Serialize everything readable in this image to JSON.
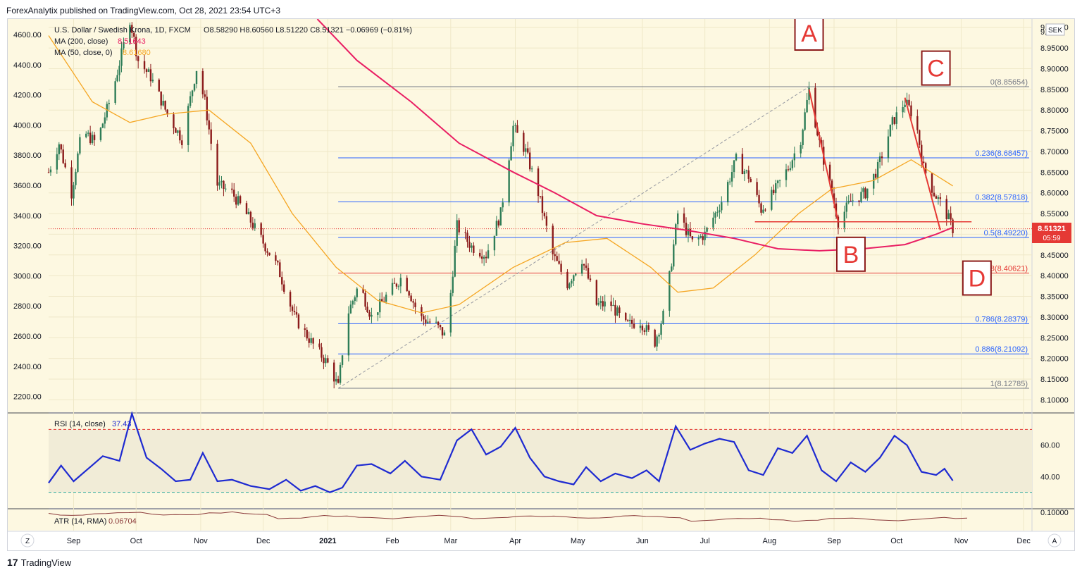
{
  "publisher_line": "ForexAnalytix published on TradingView.com, Oct 28, 2021 23:54 UTC+3",
  "footer_brand": "TradingView",
  "footer_logo_glyph": "17",
  "colors": {
    "bg_main": "#fdf8e1",
    "bg_panel": "#fdf8e1",
    "up": "#2e7d57",
    "down": "#8b1a1a",
    "ma200": "#e91e63",
    "ma50": "#f5a623",
    "fib": "#2962ff",
    "red_line": "#e53935",
    "rsi": "#1e2ad1",
    "atr": "#8b3a3a",
    "label_box": "#8b1a1a",
    "price_tag": "#e53935"
  },
  "legend": {
    "symbol": "U.S. Dollar / Swedish Krona, 1D, FXCM",
    "ohlc": "O8.58290  H8.60560  L8.51220  C8.51321  −0.06969 (−0.81%)",
    "ma200": "MA (200, close)",
    "ma200_val": "8.51643",
    "ma50": "MA (50, close, 0)",
    "ma50_val": "8.61680"
  },
  "currency_badge": "SEK",
  "price_tag": {
    "value": "8.51321",
    "countdown": "05:59"
  },
  "right_axis": [
    "9.00000",
    "8.95000",
    "8.90000",
    "8.85000",
    "8.80000",
    "8.75000",
    "8.70000",
    "8.65000",
    "8.60000",
    "8.55000",
    "8.50000",
    "8.45000",
    "8.40000",
    "8.35000",
    "8.30000",
    "8.25000",
    "8.20000",
    "8.15000",
    "8.10000"
  ],
  "right_axis_top_label": "9.",
  "left_axis": [
    "4600.00",
    "4400.00",
    "4200.00",
    "4000.00",
    "3800.00",
    "3600.00",
    "3400.00",
    "3200.00",
    "3000.00",
    "2800.00",
    "2600.00",
    "2400.00",
    "2200.00"
  ],
  "time_axis": [
    "Sep",
    "Oct",
    "Nov",
    "Dec",
    "2021",
    "Feb",
    "Mar",
    "Apr",
    "May",
    "Jun",
    "Jul",
    "Aug",
    "Sep",
    "Oct",
    "Nov",
    "Dec"
  ],
  "rsi": {
    "label": "RSI (14, close)",
    "value": "37.43",
    "axis": [
      "60.00",
      "40.00"
    ]
  },
  "atr": {
    "label": "ATR (14, RMA)",
    "value": "0.06704",
    "axis": [
      "0.10000"
    ]
  },
  "pattern_labels": [
    "A",
    "B",
    "C",
    "D"
  ],
  "bottom_buttons": {
    "left": "Z",
    "right": "A"
  },
  "chart_data": {
    "type": "candlestick",
    "title": "U.S. Dollar / Swedish Krona, 1D, FXCM",
    "y_range": [
      8.07,
      9.02
    ],
    "x_range": [
      "2020-08-20",
      "2021-12-05"
    ],
    "fib_levels": [
      {
        "label": "0(8.85654)",
        "value": 8.85654
      },
      {
        "label": "0.236(8.68457)",
        "value": 8.68457
      },
      {
        "label": "0.382(8.57818)",
        "value": 8.57818
      },
      {
        "label": "0.5(8.49220)",
        "value": 8.4922
      },
      {
        "label": "0.618(8.40621)",
        "value": 8.40621
      },
      {
        "label": "0.786(8.28379)",
        "value": 8.28379
      },
      {
        "label": "0.886(8.21092)",
        "value": 8.21092
      },
      {
        "label": "1(8.12785)",
        "value": 8.12785
      }
    ],
    "fib_red_level": "0.618(8.40621)",
    "trend_dash_from": [
      "2021-01-06",
      8.12785
    ],
    "trend_dash_to": [
      "2021-08-20",
      8.85654
    ],
    "red_horizontal": {
      "from": "2021-07-25",
      "to": "2021-11-06",
      "value": 8.53
    },
    "red_segments": [
      {
        "from": [
          "2021-08-20",
          8.85
        ],
        "to": [
          "2021-09-03",
          8.53
        ]
      },
      {
        "from": [
          "2021-10-05",
          8.83
        ],
        "to": [
          "2021-10-22",
          8.51
        ]
      }
    ],
    "pattern_points": [
      {
        "label": "A",
        "date": "2021-08-20",
        "value": 8.85654
      },
      {
        "label": "B",
        "date": "2021-09-03",
        "value": 8.53
      },
      {
        "label": "C",
        "date": "2021-10-05",
        "value": 8.83
      },
      {
        "label": "D",
        "date": "2021-10-22",
        "value": 8.51
      }
    ],
    "price_path": [
      [
        "2020-08-20",
        8.65
      ],
      [
        "2020-08-25",
        8.72
      ],
      [
        "2020-08-31",
        8.6
      ],
      [
        "2020-09-05",
        8.75
      ],
      [
        "2020-09-12",
        8.72
      ],
      [
        "2020-09-20",
        8.85
      ],
      [
        "2020-09-28",
        9.02
      ],
      [
        "2020-10-02",
        8.92
      ],
      [
        "2020-10-08",
        8.88
      ],
      [
        "2020-10-16",
        8.79
      ],
      [
        "2020-10-23",
        8.73
      ],
      [
        "2020-10-30",
        8.9
      ],
      [
        "2020-11-03",
        8.82
      ],
      [
        "2020-11-09",
        8.62
      ],
      [
        "2020-11-16",
        8.6
      ],
      [
        "2020-11-24",
        8.54
      ],
      [
        "2020-12-01",
        8.48
      ],
      [
        "2020-12-08",
        8.42
      ],
      [
        "2020-12-16",
        8.3
      ],
      [
        "2020-12-24",
        8.24
      ],
      [
        "2021-01-02",
        8.18
      ],
      [
        "2021-01-06",
        8.13
      ],
      [
        "2021-01-10",
        8.3
      ],
      [
        "2021-01-16",
        8.38
      ],
      [
        "2021-01-22",
        8.3
      ],
      [
        "2021-01-29",
        8.35
      ],
      [
        "2021-02-06",
        8.4
      ],
      [
        "2021-02-14",
        8.3
      ],
      [
        "2021-02-22",
        8.28
      ],
      [
        "2021-02-27",
        8.25
      ],
      [
        "2021-03-04",
        8.52
      ],
      [
        "2021-03-11",
        8.47
      ],
      [
        "2021-03-18",
        8.45
      ],
      [
        "2021-03-25",
        8.55
      ],
      [
        "2021-03-31",
        8.76
      ],
      [
        "2021-04-06",
        8.7
      ],
      [
        "2021-04-12",
        8.6
      ],
      [
        "2021-04-19",
        8.45
      ],
      [
        "2021-04-26",
        8.38
      ],
      [
        "2021-05-03",
        8.44
      ],
      [
        "2021-05-10",
        8.33
      ],
      [
        "2021-05-17",
        8.33
      ],
      [
        "2021-05-24",
        8.28
      ],
      [
        "2021-05-31",
        8.29
      ],
      [
        "2021-06-07",
        8.24
      ],
      [
        "2021-06-12",
        8.32
      ],
      [
        "2021-06-18",
        8.55
      ],
      [
        "2021-06-25",
        8.48
      ],
      [
        "2021-07-01",
        8.5
      ],
      [
        "2021-07-09",
        8.58
      ],
      [
        "2021-07-16",
        8.68
      ],
      [
        "2021-07-22",
        8.64
      ],
      [
        "2021-07-28",
        8.56
      ],
      [
        "2021-08-03",
        8.6
      ],
      [
        "2021-08-10",
        8.66
      ],
      [
        "2021-08-16",
        8.73
      ],
      [
        "2021-08-20",
        8.85
      ],
      [
        "2021-08-25",
        8.72
      ],
      [
        "2021-08-31",
        8.6
      ],
      [
        "2021-09-03",
        8.53
      ],
      [
        "2021-09-09",
        8.58
      ],
      [
        "2021-09-16",
        8.6
      ],
      [
        "2021-09-22",
        8.66
      ],
      [
        "2021-09-29",
        8.77
      ],
      [
        "2021-10-05",
        8.82
      ],
      [
        "2021-10-10",
        8.78
      ],
      [
        "2021-10-14",
        8.66
      ],
      [
        "2021-10-19",
        8.6
      ],
      [
        "2021-10-24",
        8.56
      ],
      [
        "2021-10-28",
        8.51321
      ]
    ],
    "ma200_path": [
      [
        "2020-12-27",
        9.02
      ],
      [
        "2021-01-15",
        8.92
      ],
      [
        "2021-02-10",
        8.82
      ],
      [
        "2021-03-05",
        8.72
      ],
      [
        "2021-03-31",
        8.65
      ],
      [
        "2021-04-20",
        8.6
      ],
      [
        "2021-05-10",
        8.545
      ],
      [
        "2021-06-01",
        8.525
      ],
      [
        "2021-06-22",
        8.51
      ],
      [
        "2021-07-15",
        8.49
      ],
      [
        "2021-08-05",
        8.465
      ],
      [
        "2021-08-25",
        8.46
      ],
      [
        "2021-09-15",
        8.465
      ],
      [
        "2021-10-05",
        8.475
      ],
      [
        "2021-10-20",
        8.5
      ],
      [
        "2021-10-28",
        8.51643
      ]
    ],
    "ma50_path": [
      [
        "2020-08-20",
        8.98
      ],
      [
        "2020-09-10",
        8.82
      ],
      [
        "2020-09-28",
        8.77
      ],
      [
        "2020-10-15",
        8.79
      ],
      [
        "2020-11-05",
        8.8
      ],
      [
        "2020-11-25",
        8.72
      ],
      [
        "2020-12-15",
        8.55
      ],
      [
        "2021-01-05",
        8.42
      ],
      [
        "2021-01-25",
        8.34
      ],
      [
        "2021-02-15",
        8.31
      ],
      [
        "2021-03-05",
        8.33
      ],
      [
        "2021-03-31",
        8.42
      ],
      [
        "2021-04-25",
        8.48
      ],
      [
        "2021-05-15",
        8.49
      ],
      [
        "2021-06-05",
        8.42
      ],
      [
        "2021-06-18",
        8.36
      ],
      [
        "2021-07-05",
        8.37
      ],
      [
        "2021-07-25",
        8.45
      ],
      [
        "2021-08-15",
        8.55
      ],
      [
        "2021-08-31",
        8.61
      ],
      [
        "2021-09-20",
        8.63
      ],
      [
        "2021-10-08",
        8.68
      ],
      [
        "2021-10-28",
        8.6168
      ]
    ],
    "rsi_range": [
      20,
      80
    ],
    "rsi_levels": [
      70,
      30
    ],
    "rsi_path": [
      [
        "2020-08-20",
        36
      ],
      [
        "2020-08-26",
        47
      ],
      [
        "2020-09-01",
        37
      ],
      [
        "2020-09-08",
        45
      ],
      [
        "2020-09-15",
        53
      ],
      [
        "2020-09-23",
        50
      ],
      [
        "2020-09-29",
        80
      ],
      [
        "2020-10-06",
        52
      ],
      [
        "2020-10-13",
        45
      ],
      [
        "2020-10-20",
        37
      ],
      [
        "2020-10-27",
        38
      ],
      [
        "2020-11-02",
        55
      ],
      [
        "2020-11-09",
        37
      ],
      [
        "2020-11-16",
        38
      ],
      [
        "2020-11-25",
        34
      ],
      [
        "2020-12-04",
        32
      ],
      [
        "2020-12-12",
        38
      ],
      [
        "2020-12-19",
        31
      ],
      [
        "2020-12-26",
        34
      ],
      [
        "2021-01-02",
        30
      ],
      [
        "2021-01-08",
        33
      ],
      [
        "2021-01-15",
        47
      ],
      [
        "2021-01-22",
        48
      ],
      [
        "2021-01-31",
        42
      ],
      [
        "2021-02-07",
        50
      ],
      [
        "2021-02-15",
        40
      ],
      [
        "2021-02-24",
        38
      ],
      [
        "2021-03-04",
        63
      ],
      [
        "2021-03-11",
        70
      ],
      [
        "2021-03-18",
        54
      ],
      [
        "2021-03-25",
        59
      ],
      [
        "2021-04-01",
        71
      ],
      [
        "2021-04-08",
        52
      ],
      [
        "2021-04-15",
        40
      ],
      [
        "2021-04-22",
        37
      ],
      [
        "2021-04-29",
        35
      ],
      [
        "2021-05-05",
        46
      ],
      [
        "2021-05-12",
        37
      ],
      [
        "2021-05-19",
        42
      ],
      [
        "2021-05-27",
        39
      ],
      [
        "2021-06-03",
        44
      ],
      [
        "2021-06-09",
        37
      ],
      [
        "2021-06-17",
        72
      ],
      [
        "2021-06-24",
        57
      ],
      [
        "2021-07-01",
        61
      ],
      [
        "2021-07-08",
        64
      ],
      [
        "2021-07-15",
        62
      ],
      [
        "2021-07-22",
        44
      ],
      [
        "2021-07-29",
        41
      ],
      [
        "2021-08-05",
        58
      ],
      [
        "2021-08-12",
        55
      ],
      [
        "2021-08-19",
        66
      ],
      [
        "2021-08-26",
        44
      ],
      [
        "2021-09-02",
        37
      ],
      [
        "2021-09-09",
        49
      ],
      [
        "2021-09-16",
        43
      ],
      [
        "2021-09-23",
        52
      ],
      [
        "2021-09-30",
        66
      ],
      [
        "2021-10-06",
        60
      ],
      [
        "2021-10-13",
        43
      ],
      [
        "2021-10-20",
        41
      ],
      [
        "2021-10-24",
        45
      ],
      [
        "2021-10-28",
        37.43
      ]
    ],
    "atr_value": 0.06704
  }
}
